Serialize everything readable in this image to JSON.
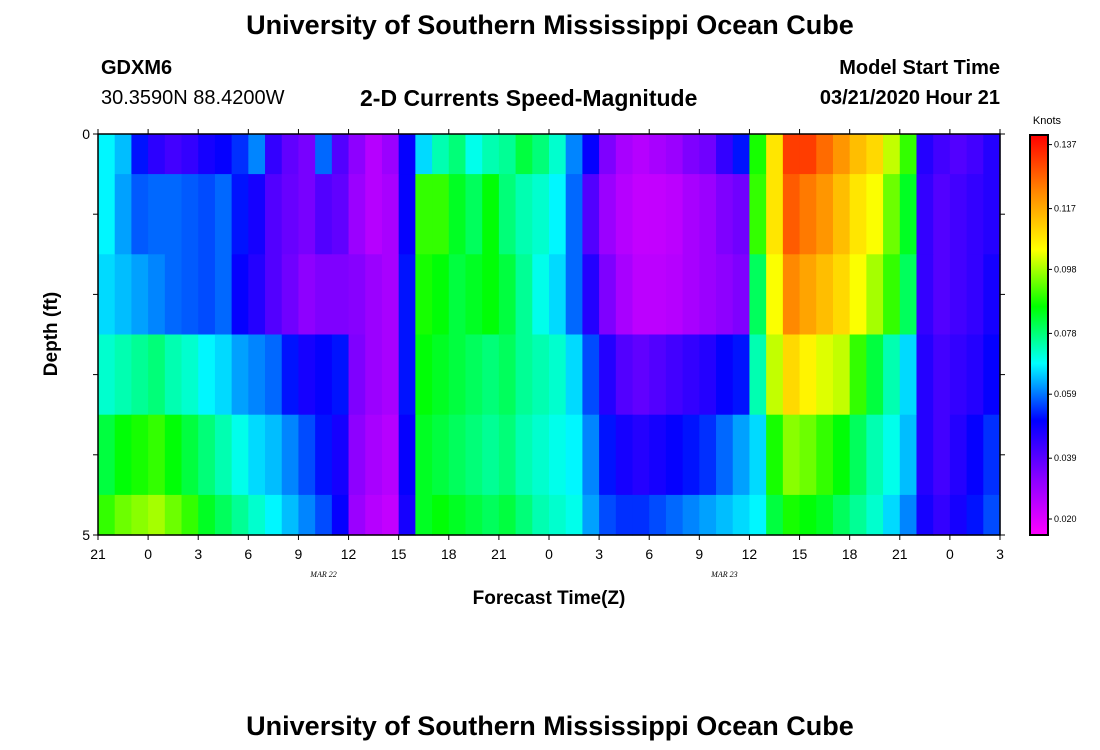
{
  "header": {
    "title": "University of Southern Mississippi Ocean Cube",
    "station_id": "GDXM6",
    "station_coords": "30.3590N 88.4200W",
    "subtitle": "2-D Currents Speed-Magnitude",
    "model_start_label": "Model Start Time",
    "model_start_value": "03/21/2020 Hour 21"
  },
  "footer": {
    "title": "University of Southern Mississippi Ocean Cube"
  },
  "chart_data": {
    "type": "heatmap",
    "title": "2-D Currents Speed-Magnitude",
    "xlabel": "Forecast Time(Z)",
    "ylabel": "Depth (ft)",
    "colorbar_label": "Knots",
    "ylim": [
      0,
      5
    ],
    "y_tick_labels": [
      "0",
      "5"
    ],
    "x_tick_labels": [
      "21",
      "0",
      "3",
      "6",
      "9",
      "12",
      "15",
      "18",
      "21",
      "0",
      "3",
      "6",
      "9",
      "12",
      "15",
      "18",
      "21",
      "0",
      "3"
    ],
    "date_labels": [
      {
        "text": "MAR 22",
        "after_tick": 4
      },
      {
        "text": "MAR 23",
        "after_tick": 12
      }
    ],
    "color_scale": {
      "min": 0.015,
      "max": 0.14,
      "tick_values": [
        0.137,
        0.117,
        0.098,
        0.078,
        0.059,
        0.039,
        0.02
      ],
      "tick_labels": [
        "0.137",
        "0.117",
        "0.098",
        "0.078",
        "0.059",
        "0.039",
        "0.020"
      ],
      "colors": [
        "#ff00ff",
        "#8800ff",
        "#0000ff",
        "#00ffff",
        "#00ff00",
        "#ffff00",
        "#ff8800",
        "#ff0000"
      ]
    },
    "depth_bands": [
      0,
      0.5,
      1.5,
      2.5,
      3.5,
      4.5,
      5
    ],
    "time_hours_step": 1,
    "time_hours_count": 54,
    "band_values": [
      [
        0.068,
        0.064,
        0.052,
        0.045,
        0.042,
        0.044,
        0.048,
        0.05,
        0.054,
        0.06,
        0.044,
        0.038,
        0.035,
        0.058,
        0.04,
        0.032,
        0.026,
        0.03,
        0.05,
        0.066,
        0.074,
        0.078,
        0.07,
        0.074,
        0.076,
        0.082,
        0.078,
        0.072,
        0.06,
        0.05,
        0.034,
        0.028,
        0.026,
        0.028,
        0.03,
        0.034,
        0.036,
        0.044,
        0.052,
        0.088,
        0.108,
        0.132,
        0.132,
        0.126,
        0.12,
        0.114,
        0.11,
        0.1,
        0.09,
        0.046,
        0.042,
        0.04,
        0.042,
        0.046
      ],
      [
        0.068,
        0.062,
        0.057,
        0.058,
        0.058,
        0.057,
        0.056,
        0.058,
        0.052,
        0.048,
        0.04,
        0.037,
        0.035,
        0.04,
        0.038,
        0.03,
        0.026,
        0.028,
        0.05,
        0.09,
        0.09,
        0.084,
        0.08,
        0.086,
        0.078,
        0.074,
        0.072,
        0.068,
        0.058,
        0.04,
        0.03,
        0.026,
        0.024,
        0.024,
        0.025,
        0.028,
        0.03,
        0.034,
        0.036,
        0.09,
        0.108,
        0.128,
        0.124,
        0.12,
        0.114,
        0.108,
        0.104,
        0.094,
        0.084,
        0.044,
        0.04,
        0.042,
        0.044,
        0.046
      ],
      [
        0.066,
        0.064,
        0.062,
        0.06,
        0.058,
        0.057,
        0.056,
        0.058,
        0.05,
        0.046,
        0.04,
        0.036,
        0.032,
        0.034,
        0.034,
        0.033,
        0.03,
        0.028,
        0.052,
        0.088,
        0.086,
        0.082,
        0.084,
        0.086,
        0.082,
        0.076,
        0.07,
        0.066,
        0.058,
        0.046,
        0.034,
        0.028,
        0.025,
        0.025,
        0.026,
        0.028,
        0.03,
        0.032,
        0.034,
        0.08,
        0.104,
        0.122,
        0.118,
        0.114,
        0.11,
        0.104,
        0.098,
        0.09,
        0.08,
        0.044,
        0.04,
        0.042,
        0.044,
        0.048
      ],
      [
        0.072,
        0.074,
        0.076,
        0.078,
        0.074,
        0.072,
        0.068,
        0.066,
        0.062,
        0.06,
        0.058,
        0.052,
        0.048,
        0.05,
        0.052,
        0.034,
        0.03,
        0.028,
        0.052,
        0.086,
        0.084,
        0.082,
        0.08,
        0.078,
        0.08,
        0.076,
        0.074,
        0.072,
        0.066,
        0.056,
        0.046,
        0.04,
        0.038,
        0.04,
        0.042,
        0.044,
        0.046,
        0.05,
        0.052,
        0.074,
        0.1,
        0.11,
        0.106,
        0.102,
        0.1,
        0.09,
        0.082,
        0.074,
        0.066,
        0.046,
        0.042,
        0.044,
        0.046,
        0.05
      ],
      [
        0.082,
        0.086,
        0.088,
        0.09,
        0.086,
        0.082,
        0.078,
        0.074,
        0.07,
        0.066,
        0.064,
        0.06,
        0.056,
        0.052,
        0.048,
        0.032,
        0.028,
        0.026,
        0.05,
        0.084,
        0.082,
        0.08,
        0.078,
        0.076,
        0.078,
        0.074,
        0.072,
        0.07,
        0.068,
        0.06,
        0.052,
        0.048,
        0.046,
        0.048,
        0.05,
        0.052,
        0.054,
        0.058,
        0.062,
        0.066,
        0.088,
        0.096,
        0.094,
        0.09,
        0.086,
        0.08,
        0.074,
        0.07,
        0.064,
        0.046,
        0.042,
        0.046,
        0.05,
        0.054
      ],
      [
        0.09,
        0.094,
        0.096,
        0.098,
        0.094,
        0.09,
        0.084,
        0.08,
        0.076,
        0.072,
        0.068,
        0.064,
        0.06,
        0.056,
        0.05,
        0.03,
        0.026,
        0.024,
        0.048,
        0.084,
        0.086,
        0.084,
        0.082,
        0.08,
        0.082,
        0.078,
        0.074,
        0.072,
        0.07,
        0.062,
        0.056,
        0.054,
        0.054,
        0.056,
        0.058,
        0.06,
        0.062,
        0.064,
        0.066,
        0.068,
        0.082,
        0.088,
        0.086,
        0.084,
        0.08,
        0.076,
        0.072,
        0.066,
        0.06,
        0.048,
        0.044,
        0.048,
        0.052,
        0.056
      ]
    ]
  }
}
